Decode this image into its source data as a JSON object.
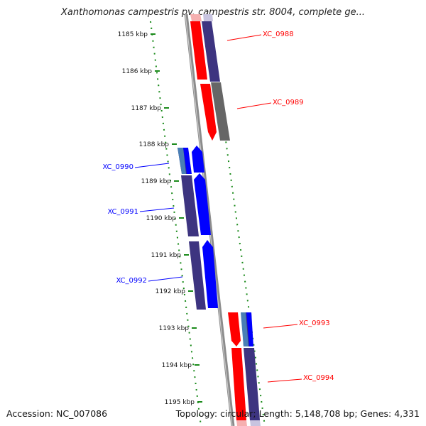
{
  "title": "Xanthomonas campestris pv. campestris str. 8004, complete ge...",
  "accession": "Accession: NC_007086",
  "topology": "Topology: circular; Length: 5,148,708 bp; Genes: 4,331",
  "colors": {
    "forward": "#ff0000",
    "reverse": "#0000ff",
    "coding_dark": "#3d3480",
    "shadow_gray": "#666666",
    "tick_green": "#1a8a1a",
    "backbone": "#8c8c8c"
  },
  "ruler": {
    "unit": "kbp",
    "ticks": [
      "1185 kbp",
      "1186 kbp",
      "1187 kbp",
      "1188 kbp",
      "1189 kbp",
      "1190 kbp",
      "1191 kbp",
      "1192 kbp",
      "1193 kbp",
      "1194 kbp",
      "1195 kbp"
    ]
  },
  "genes": [
    {
      "id": "XC_0988",
      "strand": "+",
      "color": "#ff0000"
    },
    {
      "id": "XC_0989",
      "strand": "+",
      "color": "#ff0000"
    },
    {
      "id": "XC_0990",
      "strand": "-",
      "color": "#0000ff"
    },
    {
      "id": "XC_0991",
      "strand": "-",
      "color": "#0000ff"
    },
    {
      "id": "XC_0992",
      "strand": "-",
      "color": "#0000ff"
    },
    {
      "id": "XC_0993",
      "strand": "+",
      "color": "#ff0000"
    },
    {
      "id": "XC_0994",
      "strand": "+",
      "color": "#ff0000"
    }
  ]
}
